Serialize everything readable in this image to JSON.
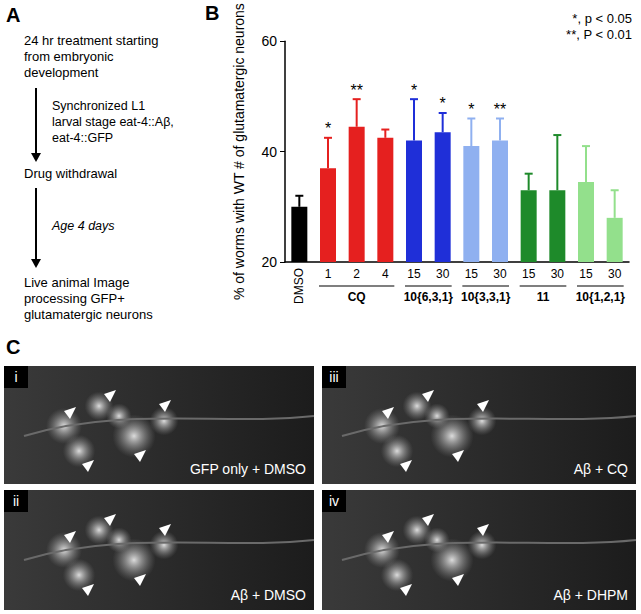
{
  "panels": {
    "A": {
      "label": "A",
      "steps": [
        [
          "24 hr treatment starting",
          "from embryonic",
          "development"
        ],
        [
          "Drug withdrawal"
        ],
        [
          "Live animal Image",
          "processing GFP+",
          "glutamatergic neurons"
        ]
      ],
      "arrow_notes": [
        [
          "Synchronized L1",
          "larval stage eat-4::Aβ,",
          "eat-4::GFP"
        ],
        [
          "Age 4 days"
        ]
      ]
    },
    "B": {
      "label": "B"
    },
    "C": {
      "label": "C",
      "images": [
        {
          "index": "i",
          "caption": "GFP only + DMSO"
        },
        {
          "index": "iii",
          "caption": "Aβ + CQ"
        },
        {
          "index": "ii",
          "caption": "Aβ + DMSO"
        },
        {
          "index": "iv",
          "caption": "Aβ + DHPM"
        }
      ]
    }
  },
  "chart_data": {
    "type": "bar",
    "ylabel": "% of worms with WT # of glutamatergic neurons",
    "categories": [
      "DMSO",
      "1",
      "2",
      "4",
      "15",
      "30",
      "15",
      "30",
      "15",
      "30",
      "15",
      "30"
    ],
    "group_of": [
      null,
      "CQ",
      "CQ",
      "CQ",
      "10{6,3,1}",
      "10{6,3,1}",
      "10{3,3,1}",
      "10{3,3,1}",
      "11",
      "11",
      "10{1,2,1}",
      "10{1,2,1}"
    ],
    "values": [
      30,
      37,
      44.5,
      42.5,
      42,
      43.5,
      41,
      42,
      33,
      33,
      34.5,
      28
    ],
    "errors": [
      2,
      5.5,
      5,
      1.5,
      7.5,
      3.5,
      5,
      4,
      3,
      10,
      6.5,
      5
    ],
    "significance": [
      null,
      "*",
      "**",
      null,
      "*",
      "*",
      "*",
      "**",
      null,
      null,
      null,
      null
    ],
    "colors": [
      "#000000",
      "#e5201f",
      "#e5201f",
      "#e5201f",
      "#1f2fd8",
      "#1f2fd8",
      "#8fb0f0",
      "#8fb0f0",
      "#1e8a2a",
      "#1e8a2a",
      "#93e08c",
      "#93e08c"
    ],
    "annotations": [
      "*, p < 0.05",
      "**, P < 0.01"
    ],
    "ylim": [
      20,
      60
    ],
    "yticks": [
      20,
      40,
      60
    ],
    "grid": false
  }
}
